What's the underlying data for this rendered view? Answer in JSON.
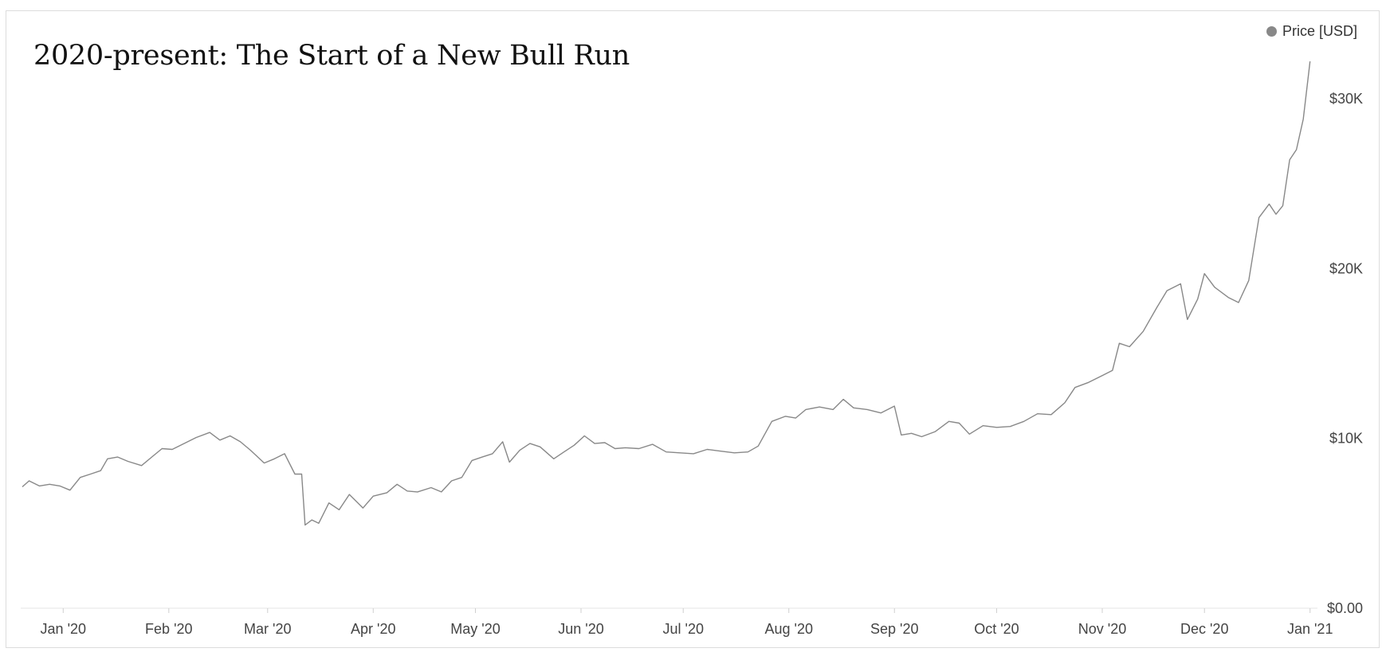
{
  "chart_data": {
    "type": "line",
    "title": "2020-present: The Start of a New Bull Run",
    "xlabel": "",
    "ylabel": "",
    "legend": {
      "label": "Price [USD]",
      "position": "top-right"
    },
    "series_color": "#888888",
    "grid": false,
    "x_range": [
      "2019-12-20",
      "2021-01-02"
    ],
    "ylim": [
      0,
      33000
    ],
    "x_tick_labels": [
      {
        "date": "2020-01-01",
        "label": "Jan '20"
      },
      {
        "date": "2020-02-01",
        "label": "Feb '20"
      },
      {
        "date": "2020-03-01",
        "label": "Mar '20"
      },
      {
        "date": "2020-04-01",
        "label": "Apr '20"
      },
      {
        "date": "2020-05-01",
        "label": "May '20"
      },
      {
        "date": "2020-06-01",
        "label": "Jun '20"
      },
      {
        "date": "2020-07-01",
        "label": "Jul '20"
      },
      {
        "date": "2020-08-01",
        "label": "Aug '20"
      },
      {
        "date": "2020-09-01",
        "label": "Sep '20"
      },
      {
        "date": "2020-10-01",
        "label": "Oct '20"
      },
      {
        "date": "2020-11-01",
        "label": "Nov '20"
      },
      {
        "date": "2020-12-01",
        "label": "Dec '20"
      },
      {
        "date": "2021-01-01",
        "label": "Jan '21"
      }
    ],
    "y_tick_labels": [
      {
        "value": 0,
        "label": "$0.00"
      },
      {
        "value": 10000,
        "label": "$10K"
      },
      {
        "value": 20000,
        "label": "$20K"
      },
      {
        "value": 30000,
        "label": "$30K"
      }
    ],
    "series": [
      {
        "name": "Price [USD]",
        "points": [
          [
            "2019-12-20",
            7150
          ],
          [
            "2019-12-22",
            7500
          ],
          [
            "2019-12-25",
            7200
          ],
          [
            "2019-12-28",
            7300
          ],
          [
            "2019-12-31",
            7200
          ],
          [
            "2020-01-03",
            6950
          ],
          [
            "2020-01-06",
            7700
          ],
          [
            "2020-01-09",
            7900
          ],
          [
            "2020-01-12",
            8100
          ],
          [
            "2020-01-14",
            8800
          ],
          [
            "2020-01-17",
            8900
          ],
          [
            "2020-01-20",
            8650
          ],
          [
            "2020-01-24",
            8400
          ],
          [
            "2020-01-27",
            8900
          ],
          [
            "2020-01-30",
            9400
          ],
          [
            "2020-02-02",
            9350
          ],
          [
            "2020-02-06",
            9750
          ],
          [
            "2020-02-09",
            10050
          ],
          [
            "2020-02-13",
            10350
          ],
          [
            "2020-02-16",
            9900
          ],
          [
            "2020-02-19",
            10150
          ],
          [
            "2020-02-22",
            9800
          ],
          [
            "2020-02-25",
            9300
          ],
          [
            "2020-02-29",
            8550
          ],
          [
            "2020-03-03",
            8800
          ],
          [
            "2020-03-06",
            9100
          ],
          [
            "2020-03-09",
            7900
          ],
          [
            "2020-03-11",
            7900
          ],
          [
            "2020-03-12",
            4900
          ],
          [
            "2020-03-14",
            5200
          ],
          [
            "2020-03-16",
            5000
          ],
          [
            "2020-03-19",
            6200
          ],
          [
            "2020-03-22",
            5800
          ],
          [
            "2020-03-25",
            6700
          ],
          [
            "2020-03-29",
            5900
          ],
          [
            "2020-04-01",
            6600
          ],
          [
            "2020-04-05",
            6800
          ],
          [
            "2020-04-08",
            7300
          ],
          [
            "2020-04-11",
            6900
          ],
          [
            "2020-04-14",
            6850
          ],
          [
            "2020-04-18",
            7100
          ],
          [
            "2020-04-21",
            6850
          ],
          [
            "2020-04-24",
            7500
          ],
          [
            "2020-04-27",
            7700
          ],
          [
            "2020-04-30",
            8700
          ],
          [
            "2020-05-03",
            8900
          ],
          [
            "2020-05-06",
            9100
          ],
          [
            "2020-05-09",
            9800
          ],
          [
            "2020-05-11",
            8600
          ],
          [
            "2020-05-14",
            9300
          ],
          [
            "2020-05-17",
            9700
          ],
          [
            "2020-05-20",
            9500
          ],
          [
            "2020-05-24",
            8800
          ],
          [
            "2020-05-27",
            9200
          ],
          [
            "2020-05-30",
            9600
          ],
          [
            "2020-06-02",
            10150
          ],
          [
            "2020-06-05",
            9700
          ],
          [
            "2020-06-08",
            9750
          ],
          [
            "2020-06-11",
            9400
          ],
          [
            "2020-06-14",
            9450
          ],
          [
            "2020-06-18",
            9400
          ],
          [
            "2020-06-22",
            9650
          ],
          [
            "2020-06-26",
            9200
          ],
          [
            "2020-06-30",
            9150
          ],
          [
            "2020-07-04",
            9100
          ],
          [
            "2020-07-08",
            9350
          ],
          [
            "2020-07-12",
            9250
          ],
          [
            "2020-07-16",
            9150
          ],
          [
            "2020-07-20",
            9200
          ],
          [
            "2020-07-23",
            9550
          ],
          [
            "2020-07-27",
            11000
          ],
          [
            "2020-07-31",
            11300
          ],
          [
            "2020-08-03",
            11200
          ],
          [
            "2020-08-06",
            11700
          ],
          [
            "2020-08-10",
            11850
          ],
          [
            "2020-08-14",
            11700
          ],
          [
            "2020-08-17",
            12300
          ],
          [
            "2020-08-20",
            11800
          ],
          [
            "2020-08-24",
            11700
          ],
          [
            "2020-08-28",
            11500
          ],
          [
            "2020-09-01",
            11900
          ],
          [
            "2020-09-03",
            10200
          ],
          [
            "2020-09-06",
            10300
          ],
          [
            "2020-09-09",
            10100
          ],
          [
            "2020-09-13",
            10400
          ],
          [
            "2020-09-17",
            11000
          ],
          [
            "2020-09-20",
            10900
          ],
          [
            "2020-09-23",
            10250
          ],
          [
            "2020-09-27",
            10750
          ],
          [
            "2020-10-01",
            10650
          ],
          [
            "2020-10-05",
            10700
          ],
          [
            "2020-10-09",
            11000
          ],
          [
            "2020-10-13",
            11450
          ],
          [
            "2020-10-17",
            11400
          ],
          [
            "2020-10-21",
            12100
          ],
          [
            "2020-10-24",
            13000
          ],
          [
            "2020-10-28",
            13300
          ],
          [
            "2020-11-01",
            13700
          ],
          [
            "2020-11-04",
            14000
          ],
          [
            "2020-11-06",
            15600
          ],
          [
            "2020-11-09",
            15400
          ],
          [
            "2020-11-13",
            16300
          ],
          [
            "2020-11-17",
            17700
          ],
          [
            "2020-11-20",
            18700
          ],
          [
            "2020-11-24",
            19100
          ],
          [
            "2020-11-26",
            17000
          ],
          [
            "2020-11-29",
            18200
          ],
          [
            "2020-12-01",
            19700
          ],
          [
            "2020-12-04",
            18900
          ],
          [
            "2020-12-08",
            18300
          ],
          [
            "2020-12-11",
            18000
          ],
          [
            "2020-12-14",
            19300
          ],
          [
            "2020-12-17",
            23000
          ],
          [
            "2020-12-20",
            23800
          ],
          [
            "2020-12-22",
            23200
          ],
          [
            "2020-12-24",
            23700
          ],
          [
            "2020-12-26",
            26400
          ],
          [
            "2020-12-28",
            27000
          ],
          [
            "2020-12-30",
            28800
          ],
          [
            "2021-01-01",
            32200
          ]
        ]
      }
    ]
  }
}
